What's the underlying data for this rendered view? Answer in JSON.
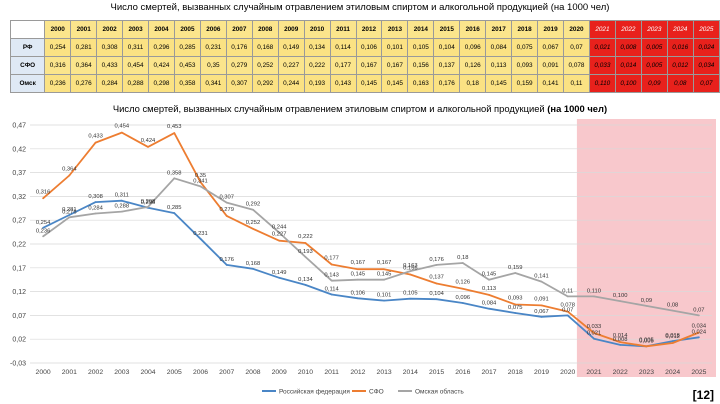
{
  "table": {
    "title": "Число смертей, вызванных случайным отравлением этиловым спиртом и алкогольной продукцией (на 1000 чел)",
    "years": [
      "2000",
      "2001",
      "2002",
      "2003",
      "2004",
      "2005",
      "2006",
      "2007",
      "2008",
      "2009",
      "2010",
      "2011",
      "2012",
      "2013",
      "2014",
      "2015",
      "2016",
      "2017",
      "2018",
      "2019",
      "2020",
      "2021",
      "2022",
      "2023",
      "2024",
      "2025"
    ],
    "rows": [
      {
        "label": "РФ",
        "values": [
          "0,254",
          "0,281",
          "0,308",
          "0,311",
          "0,296",
          "0,285",
          "0,231",
          "0,176",
          "0,168",
          "0,149",
          "0,134",
          "0,114",
          "0,106",
          "0,101",
          "0,105",
          "0,104",
          "0,096",
          "0,084",
          "0,075",
          "0,067",
          "0,07",
          "0,021",
          "0,008",
          "0,005",
          "0,016",
          "0,024"
        ]
      },
      {
        "label": "СФО",
        "values": [
          "0,316",
          "0,364",
          "0,433",
          "0,454",
          "0,424",
          "0,453",
          "0,35",
          "0,279",
          "0,252",
          "0,227",
          "0,222",
          "0,177",
          "0,167",
          "0,167",
          "0,156",
          "0,137",
          "0,126",
          "0,113",
          "0,093",
          "0,091",
          "0,078",
          "0,033",
          "0,014",
          "0,005",
          "0,012",
          "0,034"
        ]
      },
      {
        "label": "Омск",
        "values": [
          "0,236",
          "0,276",
          "0,284",
          "0,288",
          "0,298",
          "0,358",
          "0,341",
          "0,307",
          "0,292",
          "0,244",
          "0,193",
          "0,143",
          "0,145",
          "0,145",
          "0,163",
          "0,176",
          "0,18",
          "0,145",
          "0,159",
          "0,141",
          "0,11",
          "0,110",
          "0,100",
          "0,09",
          "0,08",
          "0,07"
        ]
      }
    ]
  },
  "ref_label": "[12]",
  "chart_data": {
    "type": "line",
    "title_main": "Число смертей, вызванных случайным отравлением этиловым спиртом и алкогольной продукцией",
    "title_bold": "(на 1000 чел)",
    "categories": [
      "2000",
      "2001",
      "2002",
      "2003",
      "2004",
      "2005",
      "2006",
      "2007",
      "2008",
      "2009",
      "2010",
      "2011",
      "2012",
      "2013",
      "2014",
      "2015",
      "2016",
      "2017",
      "2018",
      "2019",
      "2020",
      "2021",
      "2022",
      "2023",
      "2024",
      "2025"
    ],
    "ylim": [
      -0.03,
      0.47
    ],
    "yticks": [
      "-0,03",
      "0,02",
      "0,07",
      "0,12",
      "0,17",
      "0,22",
      "0,27",
      "0,32",
      "0,37",
      "0,42",
      "0,47"
    ],
    "forecast_from": "2021",
    "forecast_color": "#f8c8cc",
    "series": [
      {
        "name": "Российская федерация",
        "color": "#4a86c6",
        "values": [
          0.254,
          0.281,
          0.308,
          0.311,
          0.296,
          0.285,
          0.231,
          0.176,
          0.168,
          0.149,
          0.134,
          0.114,
          0.106,
          0.101,
          0.105,
          0.104,
          0.096,
          0.084,
          0.075,
          0.067,
          0.07,
          0.021,
          0.008,
          0.005,
          0.016,
          0.024
        ],
        "labels": [
          "0,254",
          "0,281",
          "0,308",
          "0,311",
          "0,296",
          "0,285",
          "0,231",
          "0,176",
          "0,168",
          "0,149",
          "0,134",
          "0,114",
          "0,106",
          "0,101",
          "0,105",
          "0,104",
          "0,096",
          "0,084",
          "0,075",
          "0,067",
          "0,07",
          "0,021",
          "0,008",
          "0,005",
          "0,016",
          "0,024"
        ]
      },
      {
        "name": "СФО",
        "color": "#ed7d31",
        "values": [
          0.316,
          0.364,
          0.433,
          0.454,
          0.424,
          0.453,
          0.35,
          0.279,
          0.252,
          0.227,
          0.222,
          0.177,
          0.167,
          0.167,
          0.156,
          0.137,
          0.126,
          0.113,
          0.093,
          0.091,
          0.078,
          0.033,
          0.014,
          0.005,
          0.012,
          0.034
        ],
        "labels": [
          "0,316",
          "0,364",
          "0,433",
          "0,454",
          "0,424",
          "0,453",
          "0,35",
          "0,279",
          "0,252",
          "0,227",
          "0,222",
          "0,177",
          "0,167",
          "0,167",
          "0,156",
          "0,137",
          "0,126",
          "0,113",
          "0,093",
          "0,091",
          "0,078",
          "0,033",
          "0,014",
          "0,005",
          "0,012",
          "0,034"
        ]
      },
      {
        "name": "Омская область",
        "color": "#a5a5a5",
        "values": [
          0.236,
          0.276,
          0.284,
          0.288,
          0.298,
          0.358,
          0.341,
          0.307,
          0.292,
          0.244,
          0.193,
          0.143,
          0.145,
          0.145,
          0.163,
          0.176,
          0.18,
          0.145,
          0.159,
          0.141,
          0.11,
          0.11,
          0.1,
          0.09,
          0.08,
          0.07
        ],
        "labels": [
          "0,236",
          "0,276",
          "0,284",
          "0,288",
          "0,298",
          "0,358",
          "0,341",
          "0,307",
          "0,292",
          "0,244",
          "0,193",
          "0,143",
          "0,145",
          "0,145",
          "0,163",
          "0,176",
          "0,18",
          "0,145",
          "0,159",
          "0,141",
          "0,11",
          "0,110",
          "0,100",
          "0,09",
          "0,08",
          "0,07"
        ]
      }
    ]
  }
}
